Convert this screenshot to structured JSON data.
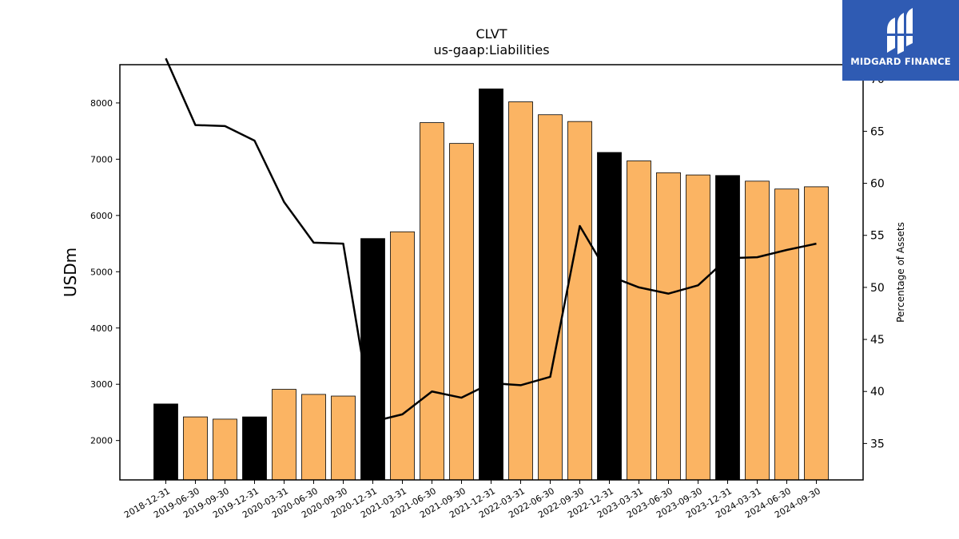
{
  "brand": {
    "name": "MIDGARD FINANCE",
    "color": "#2f5bb3"
  },
  "chart_data": {
    "type": "bar",
    "title": "CLVT",
    "subtitle": "us-gaap:Liabilities",
    "ylabel": "USDm",
    "y2label": "Percentage of Assets",
    "ylim": [
      1300,
      8680
    ],
    "y2lim": [
      31.5,
      71.4
    ],
    "yticks": [
      2000,
      3000,
      4000,
      5000,
      6000,
      7000,
      8000
    ],
    "y2ticks": [
      35,
      40,
      45,
      50,
      55,
      60,
      65,
      70
    ],
    "categories": [
      "2018-12-31",
      "2019-06-30",
      "2019-09-30",
      "2019-12-31",
      "2020-03-31",
      "2020-06-30",
      "2020-09-30",
      "2020-12-31",
      "2021-03-31",
      "2021-06-30",
      "2021-09-30",
      "2021-12-31",
      "2022-03-31",
      "2022-06-30",
      "2022-09-30",
      "2022-12-31",
      "2023-03-31",
      "2023-06-30",
      "2023-09-30",
      "2023-12-31",
      "2024-03-31",
      "2024-06-30",
      "2024-09-30"
    ],
    "series": [
      {
        "name": "",
        "kind": "bar",
        "axis": "left",
        "values": [
          2650,
          2420,
          2380,
          2420,
          2910,
          2820,
          2790,
          5590,
          5710,
          7650,
          7280,
          8250,
          8020,
          7790,
          7670,
          7120,
          6970,
          6760,
          6720,
          6710,
          6610,
          6470,
          6510
        ],
        "colors": [
          "#000000",
          "#fbb463",
          "#fbb463",
          "#000000",
          "#fbb463",
          "#fbb463",
          "#fbb463",
          "#000000",
          "#fbb463",
          "#fbb463",
          "#fbb463",
          "#000000",
          "#fbb463",
          "#fbb463",
          "#fbb463",
          "#000000",
          "#fbb463",
          "#fbb463",
          "#fbb463",
          "#000000",
          "#fbb463",
          "#fbb463",
          "#fbb463"
        ]
      },
      {
        "name": "",
        "kind": "line",
        "axis": "right",
        "color": "#000000",
        "values": [
          72.0,
          65.6,
          65.5,
          64.1,
          58.2,
          54.3,
          54.2,
          37.1,
          37.8,
          40.0,
          39.4,
          40.8,
          40.6,
          41.4,
          55.9,
          51.1,
          50.0,
          49.4,
          50.2,
          52.8,
          52.9,
          53.6,
          54.2
        ]
      }
    ],
    "grid": false,
    "legend": "none"
  }
}
